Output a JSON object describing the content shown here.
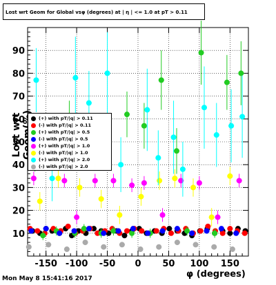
{
  "title": "Lost wrt Geom for Global vsφ (degrees) at | η | <= 1.0 at pT > 0.11",
  "timestamp": "Mon May  8 15:41:16 2017",
  "chart_data": {
    "type": "scatter",
    "xlabel": "φ (degrees)",
    "ylabel": "Lost wrt Geom(%)",
    "xlim": [
      -180,
      180
    ],
    "ylim": [
      0,
      100
    ],
    "xticks": [
      -150,
      -100,
      -50,
      0,
      50,
      100,
      150
    ],
    "yticks": [
      10,
      20,
      30,
      40,
      50,
      60,
      70,
      80,
      90
    ],
    "legend_position": "left",
    "series": [
      {
        "name": "(+) with pT/|q| > 0.11",
        "color": "#000000",
        "shape": "circle",
        "x": [
          -172,
          -160,
          -150,
          -140,
          -128,
          -118,
          -108,
          -97,
          -85,
          -72,
          -60,
          -48,
          -35,
          -22,
          -10,
          2,
          14,
          27,
          39,
          51,
          64,
          76,
          88,
          101,
          113,
          125,
          138,
          150,
          163,
          175
        ],
        "y": [
          11,
          10,
          12,
          11,
          10,
          12,
          9,
          11,
          10,
          12,
          11,
          10,
          11,
          9,
          11,
          12,
          10,
          11,
          10,
          12,
          11,
          10,
          9,
          11,
          12,
          10,
          11,
          10,
          12,
          11
        ]
      },
      {
        "name": "(-) with pT/|q| > 0.11",
        "color": "#ff0000",
        "shape": "circle",
        "x": [
          -176,
          -164,
          -152,
          -138,
          -126,
          -114,
          -102,
          -90,
          -78,
          -66,
          -54,
          -42,
          -30,
          -18,
          -6,
          6,
          18,
          30,
          42,
          54,
          66,
          78,
          90,
          102,
          114,
          126,
          138,
          150,
          162,
          174
        ],
        "y": [
          12,
          11,
          10,
          12,
          11,
          13,
          10,
          11,
          12,
          10,
          11,
          12,
          10,
          11,
          12,
          11,
          10,
          11,
          12,
          10,
          11,
          12,
          10,
          11,
          13,
          11,
          10,
          12,
          11,
          10
        ]
      },
      {
        "name": "(+) with pT/|q| > 0.5",
        "color": "#22cc22",
        "shape": "circle",
        "x": [
          -168,
          -155,
          -133,
          -112,
          -103,
          -88,
          -60,
          -40,
          -18,
          -10,
          10,
          20,
          38,
          63,
          80,
          103,
          125,
          145,
          168
        ],
        "y": [
          40,
          9,
          11,
          60,
          10,
          12,
          10,
          11,
          62,
          10,
          57,
          10,
          77,
          46,
          11,
          89,
          10,
          76,
          80
        ],
        "err": [
          3,
          2,
          2,
          8,
          2,
          2,
          2,
          2,
          10,
          2,
          10,
          2,
          13,
          10,
          2,
          14,
          2,
          12,
          14
        ]
      },
      {
        "name": "(-) with pT/|q| > 0.5",
        "color": "#0000ff",
        "shape": "circle",
        "x": [
          -174,
          -150,
          -128,
          -104,
          -80,
          -56,
          -32,
          -8,
          16,
          40,
          64,
          88,
          112,
          136,
          160
        ],
        "y": [
          11,
          12,
          10,
          11,
          12,
          10,
          11,
          12,
          10,
          11,
          12,
          10,
          11,
          12,
          10
        ]
      },
      {
        "name": "(+) with pT/|q| > 1.0",
        "color": "#ff00ff",
        "shape": "circle",
        "x": [
          -170,
          -120,
          -100,
          -70,
          -40,
          -10,
          10,
          40,
          70,
          100,
          130,
          165
        ],
        "y": [
          34,
          33,
          17,
          33,
          33,
          31,
          32,
          18,
          33,
          32,
          17,
          33
        ],
        "err": [
          3,
          3,
          3,
          3,
          3,
          3,
          3,
          3,
          3,
          3,
          3,
          3
        ]
      },
      {
        "name": "(-) with pT/|q| > 1.0",
        "color": "#ffff00",
        "shape": "circle",
        "x": [
          -160,
          -130,
          -95,
          -60,
          -30,
          5,
          35,
          60,
          90,
          120,
          150
        ],
        "y": [
          24,
          34,
          30,
          25,
          18,
          26,
          33,
          34,
          30,
          17,
          35
        ],
        "err": [
          4,
          4,
          4,
          4,
          4,
          4,
          4,
          4,
          4,
          4,
          4
        ]
      },
      {
        "name": "(+) with pT/|q| > 2.0",
        "color": "#00ffff",
        "shape": "circle",
        "x": [
          -166,
          -140,
          -102,
          -80,
          -50,
          -28,
          15,
          33,
          58,
          73,
          108,
          128,
          152,
          170
        ],
        "y": [
          77,
          34,
          78,
          67,
          80,
          40,
          64,
          43,
          52,
          38,
          65,
          53,
          57,
          61
        ],
        "err": [
          14,
          10,
          18,
          14,
          18,
          12,
          18,
          12,
          16,
          12,
          18,
          14,
          16,
          18
        ]
      },
      {
        "name": "(-) with pT/|q| > 2.0",
        "color": "#aaaaaa",
        "shape": "circle",
        "x": [
          -178,
          -146,
          -116,
          -86,
          -56,
          -26,
          4,
          34,
          64,
          94,
          124,
          154
        ],
        "y": [
          4,
          5,
          3,
          6,
          4,
          5,
          3,
          4,
          6,
          5,
          4,
          3
        ]
      }
    ]
  }
}
